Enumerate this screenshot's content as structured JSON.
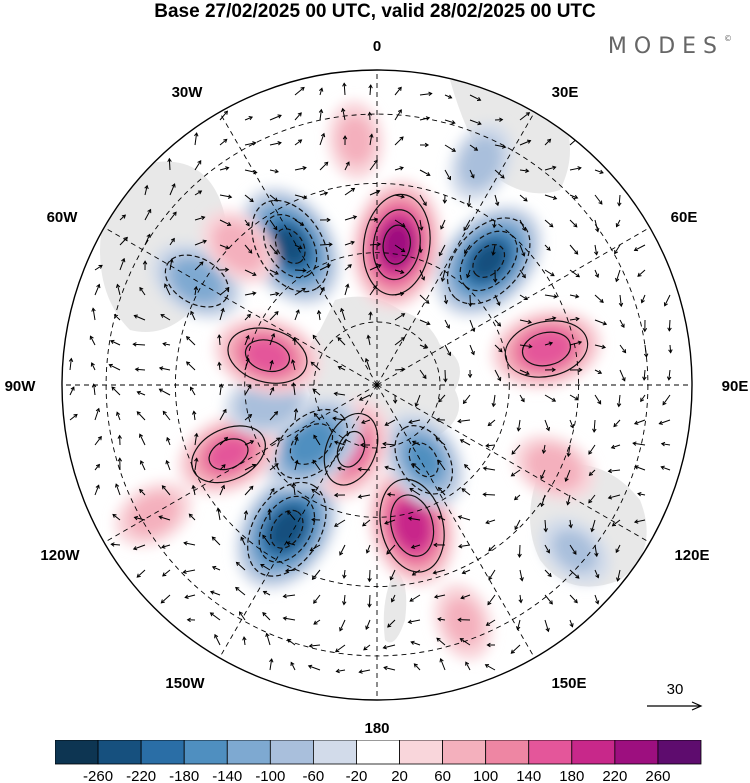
{
  "title": "Base 27/02/2025 00 UTC, valid 28/02/2025 00 UTC",
  "brand": "MODES",
  "brand_mark": "©",
  "map_labels": {
    "lon_0": "0",
    "lon_30e": "30E",
    "lon_60e": "60E",
    "lon_90e": "90E",
    "lon_120e": "120E",
    "lon_150e": "150E",
    "lon_180": "180",
    "lon_150w": "150W",
    "lon_120w": "120W",
    "lon_90w": "90W",
    "lon_60w": "60W",
    "lon_30w": "30W"
  },
  "vector_reference": {
    "label": "30",
    "icon": "arrow-right-icon"
  },
  "colorbar": {
    "ticks": [
      "-260",
      "-220",
      "-180",
      "-140",
      "-100",
      "-60",
      "-20",
      "20",
      "60",
      "100",
      "140",
      "180",
      "220",
      "260"
    ],
    "colors": [
      "#0d3552",
      "#16507e",
      "#2a6ea6",
      "#4f8fc0",
      "#7ea9d1",
      "#a9bfdc",
      "#d2dbea",
      "#ffffff",
      "#f9d6db",
      "#f4b0bd",
      "#ee86a3",
      "#e4569a",
      "#c8288a",
      "#9d0f7f",
      "#5e0c6e"
    ]
  },
  "anomalies": [
    {
      "lon": -148,
      "rho": 0.54,
      "val": -240
    },
    {
      "lon": 166,
      "rho": 0.46,
      "val": 210
    },
    {
      "lon": 148,
      "rho": 0.28,
      "val": -140
    },
    {
      "lon": -158,
      "rho": 0.22,
      "val": 140
    },
    {
      "lon": -132,
      "rho": 0.28,
      "val": -170
    },
    {
      "lon": -115,
      "rho": 0.52,
      "val": 150
    },
    {
      "lon": -100,
      "rho": 0.35,
      "val": -90
    },
    {
      "lon": -75,
      "rho": 0.36,
      "val": 160
    },
    {
      "lon": -60,
      "rho": 0.66,
      "val": -120
    },
    {
      "lon": -32,
      "rho": 0.52,
      "val": -230
    },
    {
      "lon": 8,
      "rho": 0.45,
      "val": 235
    },
    {
      "lon": 42,
      "rho": 0.53,
      "val": -230
    },
    {
      "lon": 78,
      "rho": 0.55,
      "val": 170
    },
    {
      "lon": -45,
      "rho": 0.62,
      "val": 80
    },
    {
      "lon": -5,
      "rho": 0.78,
      "val": 60
    },
    {
      "lon": 25,
      "rho": 0.78,
      "val": -70
    },
    {
      "lon": 115,
      "rho": 0.62,
      "val": 80
    },
    {
      "lon": 130,
      "rho": 0.82,
      "val": -60
    },
    {
      "lon": -120,
      "rho": 0.82,
      "val": 70
    },
    {
      "lon": 160,
      "rho": 0.8,
      "val": 60
    }
  ]
}
